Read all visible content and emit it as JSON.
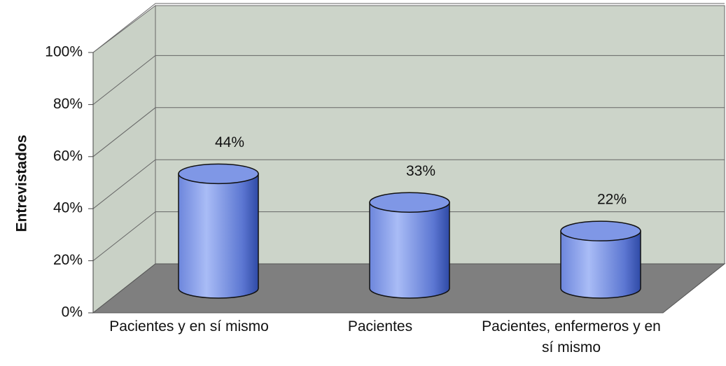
{
  "chart_data": {
    "type": "bar3d",
    "y_label": "Entrevistados",
    "categories": [
      "Pacientes y en sí mismo",
      "Pacientes",
      "Pacientes, enfermeros y en sí mismo"
    ],
    "values": [
      44,
      33,
      22
    ],
    "value_labels": [
      "44%",
      "33%",
      "22%"
    ],
    "color": "#7f97e6",
    "ylim": [
      0,
      100
    ],
    "yticks": [
      {
        "value": 0,
        "label": "0%"
      },
      {
        "value": 20,
        "label": "20%"
      },
      {
        "value": 40,
        "label": "40%"
      },
      {
        "value": 60,
        "label": "60%"
      },
      {
        "value": 80,
        "label": "80%"
      },
      {
        "value": 100,
        "label": "100%"
      }
    ],
    "grid": true
  }
}
